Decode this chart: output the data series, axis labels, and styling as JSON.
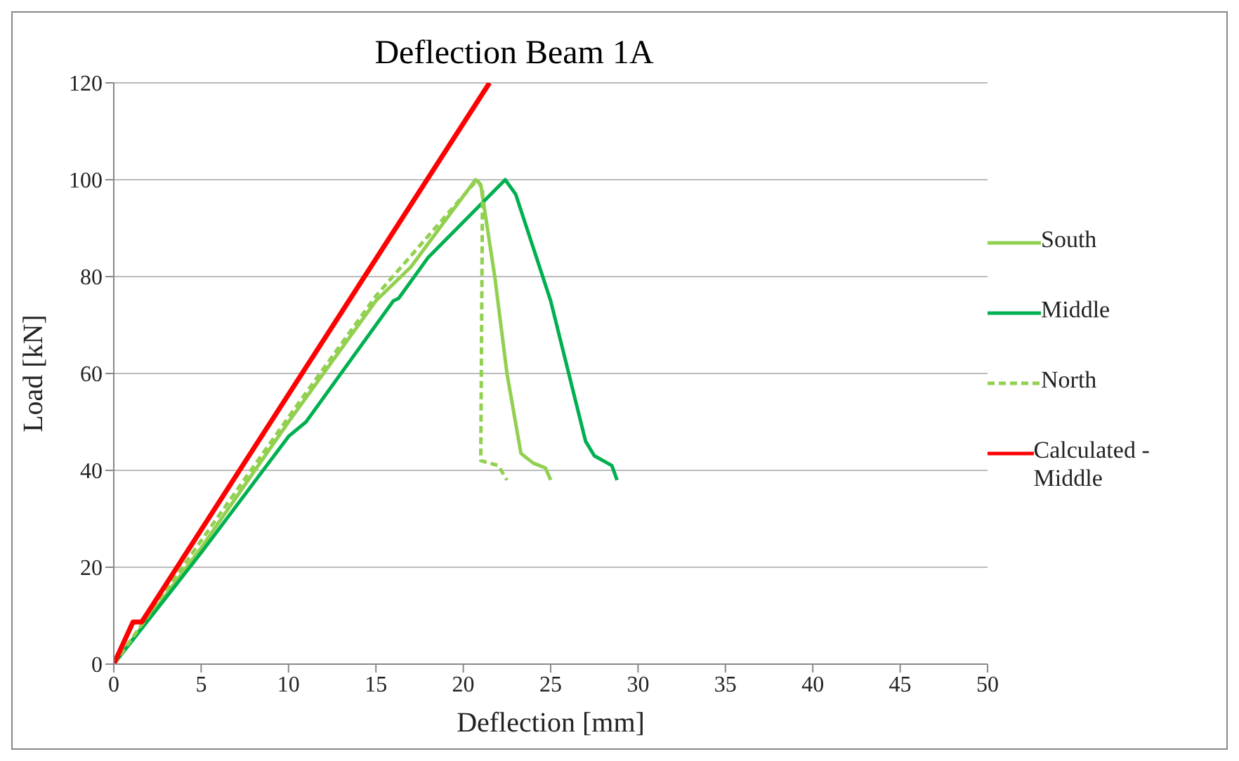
{
  "chart_data": {
    "type": "line",
    "title": "Deflection Beam 1A",
    "xlabel": "Deflection [mm]",
    "ylabel": "Load [kN]",
    "xlim": [
      0,
      50
    ],
    "xticks": [
      0,
      5,
      10,
      15,
      20,
      25,
      30,
      35,
      40,
      45,
      50
    ],
    "ylim": [
      0,
      120
    ],
    "yticks": [
      0,
      20,
      40,
      60,
      80,
      100,
      120
    ],
    "grid": "y",
    "legend": "right",
    "marker": "none",
    "series": [
      {
        "name": "South",
        "color": "#92d050",
        "line_style": "solid",
        "x": [
          0,
          5,
          10,
          15,
          17,
          20.7,
          21,
          21.8,
          22.5,
          23.3,
          24,
          24.7,
          25
        ],
        "values": [
          0,
          24,
          50,
          75,
          82,
          100,
          99,
          80,
          60,
          43.5,
          41.5,
          40.5,
          38
        ]
      },
      {
        "name": "Middle",
        "color": "#00b050",
        "line_style": "solid",
        "x": [
          0,
          5,
          10,
          11,
          15,
          16,
          16.3,
          18,
          22.4,
          23,
          25,
          27,
          27.5,
          28.5,
          28.8
        ],
        "values": [
          0,
          23,
          47,
          50,
          70,
          75,
          75.5,
          84,
          100,
          97,
          75,
          46,
          43,
          41,
          38
        ]
      },
      {
        "name": "North",
        "color": "#92d050",
        "line_style": "dashed",
        "x": [
          0,
          10,
          15,
          20.8,
          21.1,
          21,
          22,
          22.5
        ],
        "values": [
          0,
          51,
          76,
          100,
          98,
          42,
          41,
          38
        ]
      },
      {
        "name": "Calculated - Middle",
        "color": "#ff0000",
        "line_style": "solid",
        "x": [
          0,
          1.1,
          1.6,
          21.5
        ],
        "values": [
          0,
          8.7,
          8.7,
          120
        ]
      }
    ]
  }
}
